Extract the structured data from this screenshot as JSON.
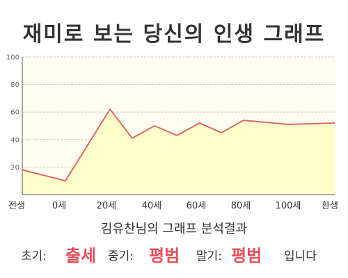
{
  "page_title": "재미로 보는 당신의 인생 그래프",
  "chart_data": {
    "type": "area",
    "title": "재미로 보는 당신의 인생 그래프",
    "xlabel": "",
    "ylabel": "",
    "x_tick_labels": [
      "전생",
      "0세",
      "20세",
      "40세",
      "60세",
      "80세",
      "100세",
      "환생"
    ],
    "points": [
      {
        "x": "전생",
        "y": 18
      },
      {
        "x": "0세",
        "y": 10
      },
      {
        "x": "20세",
        "y": 62
      },
      {
        "x": "30세",
        "y": 41
      },
      {
        "x": "40세",
        "y": 50
      },
      {
        "x": "50세",
        "y": 43
      },
      {
        "x": "60세",
        "y": 52
      },
      {
        "x": "70세",
        "y": 45
      },
      {
        "x": "80세",
        "y": 54
      },
      {
        "x": "100세",
        "y": 51
      },
      {
        "x": "환생",
        "y": 52
      }
    ],
    "ylim": [
      0,
      100
    ],
    "y_ticks": [
      20,
      40,
      60,
      80,
      100
    ],
    "grid": true,
    "colors": {
      "line": "#e06666",
      "fill": "#ffffcc",
      "grid": "#c8c8c8",
      "axis": "#555555"
    }
  },
  "result": {
    "title": "김유찬님의 그래프 분석결과",
    "early_label": "초기:",
    "early_value": "출세",
    "middle_label": "중기:",
    "middle_value": "평범",
    "late_label": "말기:",
    "late_value": "평범",
    "ending": "입니다",
    "highlight_color": "#e84f57"
  }
}
